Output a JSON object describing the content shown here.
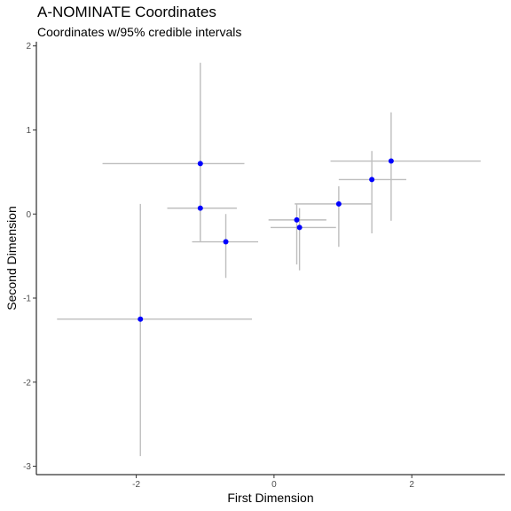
{
  "chart_data": {
    "type": "scatter",
    "title": "A-NOMINATE Coordinates",
    "subtitle": "Coordinates w/95% credible intervals",
    "xlabel": "First Dimension",
    "ylabel": "Second Dimension",
    "xlim": [
      -3.45,
      3.35
    ],
    "ylim": [
      -3.1,
      2.05
    ],
    "x_ticks": [
      -2,
      0,
      2
    ],
    "y_ticks": [
      -3,
      -2,
      -1,
      0,
      1,
      2
    ],
    "grid": false,
    "point_color": "#0000ff",
    "interval_color": "#bebebe",
    "points": [
      {
        "x": -1.07,
        "y": 0.6,
        "x_lo": -2.49,
        "x_hi": -0.43,
        "y_lo": -0.33,
        "y_hi": 1.8
      },
      {
        "x": -1.07,
        "y": 0.07,
        "x_lo": -1.55,
        "x_hi": -0.54,
        "y_lo": -0.3,
        "y_hi": 0.7
      },
      {
        "x": -0.7,
        "y": -0.33,
        "x_lo": -1.19,
        "x_hi": -0.23,
        "y_lo": -0.76,
        "y_hi": 0.0
      },
      {
        "x": -1.94,
        "y": -1.25,
        "x_lo": -3.15,
        "x_hi": -0.32,
        "y_lo": -2.88,
        "y_hi": 0.12
      },
      {
        "x": 0.33,
        "y": -0.07,
        "x_lo": -0.08,
        "x_hi": 0.76,
        "y_lo": -0.6,
        "y_hi": 0.12
      },
      {
        "x": 0.37,
        "y": -0.16,
        "x_lo": -0.05,
        "x_hi": 0.9,
        "y_lo": -0.67,
        "y_hi": 0.07
      },
      {
        "x": 0.94,
        "y": 0.12,
        "x_lo": 0.3,
        "x_hi": 1.42,
        "y_lo": -0.39,
        "y_hi": 0.33
      },
      {
        "x": 1.42,
        "y": 0.41,
        "x_lo": 0.94,
        "x_hi": 1.92,
        "y_lo": -0.23,
        "y_hi": 0.75
      },
      {
        "x": 1.7,
        "y": 0.63,
        "x_lo": 0.82,
        "x_hi": 3.0,
        "y_lo": -0.08,
        "y_hi": 1.21
      }
    ]
  }
}
